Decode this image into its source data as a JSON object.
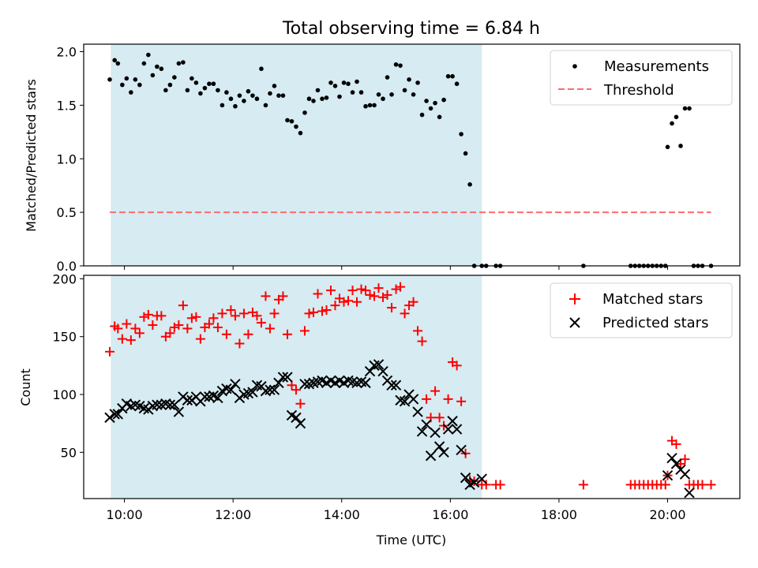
{
  "chart_data": {
    "type": "scatter",
    "title": "Total observing time = 6.84 h",
    "xlabel": "Time (UTC)",
    "x_unit": "hours UTC",
    "xlim": [
      9.25,
      21.33
    ],
    "x_ticks": [
      10,
      12,
      14,
      16,
      18,
      20
    ],
    "x_tick_labels": [
      "10:00",
      "12:00",
      "14:00",
      "16:00",
      "18:00",
      "20:00"
    ],
    "shaded_interval": {
      "start": 9.75,
      "end": 16.58,
      "color": "#add8e6"
    },
    "panels": [
      {
        "ylabel": "Matched/Predicted stars",
        "ylim": [
          0,
          2.07
        ],
        "y_ticks": [
          0.0,
          0.5,
          1.0,
          1.5,
          2.0
        ],
        "y_tick_labels": [
          "0.0",
          "0.5",
          "1.0",
          "1.5",
          "2.0"
        ],
        "legend_position": "upper right",
        "series": [
          {
            "name": "Measurements",
            "marker": "dot",
            "color": "#000000",
            "x": [
              9.73,
              9.82,
              9.88,
              9.96,
              10.04,
              10.12,
              10.2,
              10.28,
              10.36,
              10.44,
              10.52,
              10.6,
              10.68,
              10.76,
              10.84,
              10.92,
              11.0,
              11.08,
              11.16,
              11.24,
              11.32,
              11.4,
              11.48,
              11.56,
              11.64,
              11.72,
              11.8,
              11.88,
              11.96,
              12.04,
              12.12,
              12.2,
              12.28,
              12.36,
              12.44,
              12.52,
              12.6,
              12.68,
              12.76,
              12.84,
              12.92,
              13.0,
              13.08,
              13.16,
              13.24,
              13.32,
              13.4,
              13.48,
              13.56,
              13.64,
              13.72,
              13.8,
              13.88,
              13.96,
              14.04,
              14.12,
              14.2,
              14.28,
              14.36,
              14.44,
              14.52,
              14.6,
              14.68,
              14.76,
              14.84,
              14.92,
              15.0,
              15.08,
              15.16,
              15.24,
              15.32,
              15.4,
              15.48,
              15.56,
              15.64,
              15.72,
              15.8,
              15.88,
              15.96,
              16.04,
              16.12,
              16.2,
              16.28,
              16.36,
              16.44,
              16.58,
              16.66,
              16.84,
              16.92,
              18.45,
              19.32,
              19.4,
              19.48,
              19.56,
              19.64,
              19.72,
              19.8,
              19.88,
              19.96,
              20.0,
              20.08,
              20.16,
              20.24,
              20.32,
              20.4,
              20.48,
              20.56,
              20.64,
              20.8
            ],
            "y": [
              1.74,
              1.92,
              1.89,
              1.69,
              1.75,
              1.62,
              1.74,
              1.69,
              1.89,
              1.97,
              1.78,
              1.86,
              1.84,
              1.64,
              1.69,
              1.76,
              1.89,
              1.9,
              1.64,
              1.75,
              1.71,
              1.61,
              1.66,
              1.7,
              1.7,
              1.64,
              1.5,
              1.62,
              1.56,
              1.49,
              1.59,
              1.54,
              1.63,
              1.59,
              1.56,
              1.84,
              1.5,
              1.61,
              1.68,
              1.59,
              1.59,
              1.36,
              1.35,
              1.3,
              1.24,
              1.43,
              1.56,
              1.54,
              1.64,
              1.56,
              1.57,
              1.71,
              1.68,
              1.58,
              1.71,
              1.7,
              1.62,
              1.72,
              1.62,
              1.49,
              1.5,
              1.5,
              1.6,
              1.56,
              1.76,
              1.6,
              1.88,
              1.87,
              1.64,
              1.74,
              1.6,
              1.71,
              1.41,
              1.54,
              1.47,
              1.52,
              1.39,
              1.55,
              1.77,
              1.77,
              1.7,
              1.23,
              1.05,
              0.76,
              0.0,
              0.0,
              0.0,
              0.0,
              0.0,
              0.0,
              0.0,
              0.0,
              0.0,
              0.0,
              0.0,
              0.0,
              0.0,
              0.0,
              0.0,
              1.11,
              1.33,
              1.39,
              1.12,
              1.47,
              1.47,
              0.0,
              0.0,
              0.0,
              0.0
            ]
          },
          {
            "name": "Threshold",
            "marker": "dashed-line",
            "color": "#ff6b6b",
            "x": [
              9.73,
              20.8
            ],
            "y": [
              0.5,
              0.5
            ]
          }
        ]
      },
      {
        "ylabel": "Count",
        "ylim": [
          10,
          203
        ],
        "y_ticks": [
          50,
          100,
          150,
          200
        ],
        "y_tick_labels": [
          "50",
          "100",
          "150",
          "200"
        ],
        "legend_position": "upper right",
        "series": [
          {
            "name": "Matched stars",
            "marker": "plus",
            "color": "#ff0000",
            "x": [
              9.73,
              9.82,
              9.88,
              9.96,
              10.04,
              10.12,
              10.2,
              10.28,
              10.36,
              10.44,
              10.52,
              10.6,
              10.68,
              10.76,
              10.84,
              10.92,
              11.0,
              11.08,
              11.16,
              11.24,
              11.32,
              11.4,
              11.48,
              11.56,
              11.64,
              11.72,
              11.8,
              11.88,
              11.96,
              12.04,
              12.12,
              12.2,
              12.28,
              12.36,
              12.44,
              12.52,
              12.6,
              12.68,
              12.76,
              12.84,
              12.92,
              13.0,
              13.08,
              13.16,
              13.24,
              13.32,
              13.4,
              13.48,
              13.56,
              13.64,
              13.72,
              13.8,
              13.88,
              13.96,
              14.04,
              14.12,
              14.2,
              14.28,
              14.36,
              14.44,
              14.52,
              14.6,
              14.68,
              14.76,
              14.84,
              14.92,
              15.0,
              15.08,
              15.16,
              15.24,
              15.32,
              15.4,
              15.48,
              15.56,
              15.64,
              15.72,
              15.8,
              15.88,
              15.96,
              16.04,
              16.12,
              16.2,
              16.28,
              16.36,
              16.44,
              16.58,
              16.66,
              16.84,
              16.92,
              18.45,
              19.32,
              19.4,
              19.48,
              19.56,
              19.64,
              19.72,
              19.8,
              19.88,
              19.96,
              20.0,
              20.08,
              20.16,
              20.24,
              20.32,
              20.4,
              20.48,
              20.56,
              20.64,
              20.8
            ],
            "y": [
              137,
              159,
              157,
              148,
              161,
              147,
              157,
              153,
              167,
              169,
              160,
              168,
              168,
              150,
              153,
              158,
              160,
              177,
              157,
              166,
              167,
              148,
              158,
              161,
              166,
              158,
              170,
              152,
              173,
              168,
              144,
              170,
              152,
              171,
              168,
              162,
              185,
              157,
              170,
              182,
              185,
              152,
              108,
              104,
              92,
              155,
              170,
              171,
              187,
              172,
              173,
              190,
              177,
              183,
              180,
              181,
              190,
              180,
              191,
              190,
              186,
              185,
              192,
              184,
              186,
              175,
              191,
              193,
              170,
              177,
              180,
              155,
              146,
              96,
              80,
              103,
              80,
              73,
              96,
              128,
              125,
              94,
              49,
              26,
              25,
              22,
              22,
              22,
              22,
              22,
              22,
              22,
              22,
              22,
              22,
              22,
              22,
              22,
              22,
              30,
              60,
              57,
              40,
              44,
              22,
              22,
              22,
              22,
              22
            ]
          },
          {
            "name": "Predicted stars",
            "marker": "x",
            "color": "#000000",
            "x": [
              9.73,
              9.82,
              9.88,
              9.96,
              10.04,
              10.12,
              10.2,
              10.28,
              10.36,
              10.44,
              10.52,
              10.6,
              10.68,
              10.76,
              10.84,
              10.92,
              11.0,
              11.08,
              11.16,
              11.24,
              11.32,
              11.4,
              11.48,
              11.56,
              11.64,
              11.72,
              11.8,
              11.88,
              11.96,
              12.04,
              12.12,
              12.2,
              12.28,
              12.36,
              12.44,
              12.52,
              12.6,
              12.68,
              12.76,
              12.84,
              12.92,
              13.0,
              13.08,
              13.16,
              13.24,
              13.32,
              13.4,
              13.48,
              13.56,
              13.64,
              13.72,
              13.8,
              13.88,
              13.96,
              14.04,
              14.12,
              14.2,
              14.28,
              14.36,
              14.44,
              14.52,
              14.6,
              14.68,
              14.76,
              14.84,
              14.92,
              15.0,
              15.08,
              15.16,
              15.24,
              15.32,
              15.4,
              15.48,
              15.56,
              15.64,
              15.72,
              15.8,
              15.88,
              15.96,
              16.04,
              16.12,
              16.2,
              16.28,
              16.36,
              16.44,
              16.58,
              20.0,
              20.08,
              20.16,
              20.24,
              20.32,
              20.4
            ],
            "y": [
              80,
              83,
              83,
              88,
              92,
              90,
              91,
              90,
              88,
              87,
              90,
              91,
              91,
              92,
              91,
              91,
              85,
              98,
              95,
              95,
              98,
              94,
              98,
              98,
              99,
              97,
              103,
              105,
              104,
              109,
              97,
              100,
              101,
              102,
              108,
              107,
              103,
              104,
              104,
              110,
              115,
              115,
              82,
              80,
              75,
              109,
              109,
              110,
              111,
              112,
              110,
              112,
              110,
              112,
              110,
              112,
              111,
              110,
              111,
              110,
              120,
              125,
              126,
              120,
              112,
              108,
              108,
              95,
              94,
              100,
              96,
              85,
              68,
              74,
              47,
              67,
              55,
              50,
              70,
              77,
              70,
              52,
              28,
              22,
              24,
              27,
              30,
              45,
              40,
              35,
              31,
              15
            ]
          }
        ]
      }
    ]
  }
}
